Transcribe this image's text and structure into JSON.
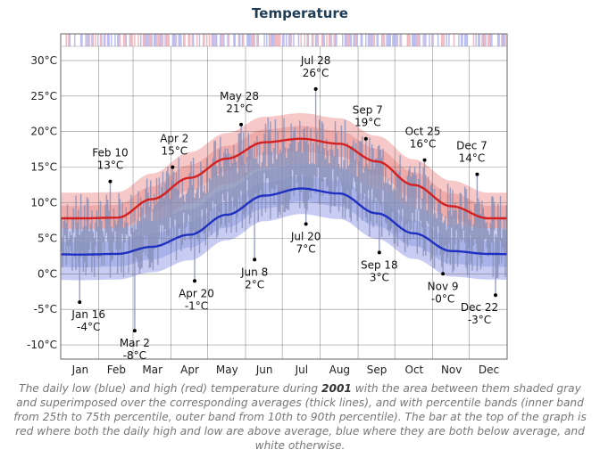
{
  "title": "Temperature",
  "caption": {
    "before": "The daily low (blue) and high (red) temperature during ",
    "year": "2001",
    "after": " with the area between them shaded gray and superimposed over the corresponding averages (thick lines), and with percentile bands (inner band from 25th to 75th percentile, outer band from 10th to 90th percentile). The bar at the top of the graph is red where both the daily high and low are above average, blue where they are both below average, and white otherwise."
  },
  "colors": {
    "high": "#d42020",
    "low": "#2030c0",
    "range_bar": "#8890b8",
    "band_high_outer": "#f6c8c8",
    "band_high_inner": "#efaaaa",
    "band_low_outer": "#c8ccf2",
    "band_low_inner": "#aab2ea",
    "status_red": "#f0b8c0",
    "status_blue": "#b8bcf0",
    "grid": "#555555"
  },
  "chart_data": {
    "type": "area",
    "title": "Temperature",
    "ylim": [
      -12,
      32
    ],
    "y_ticks": [
      30,
      25,
      20,
      15,
      10,
      5,
      0,
      -5,
      -10
    ],
    "y_tick_labels": [
      "30°C",
      "25°C",
      "20°C",
      "15°C",
      "10°C",
      "5°C",
      "0°C",
      "-5°C",
      "-10°C"
    ],
    "months": [
      "Jan",
      "Feb",
      "Mar",
      "Apr",
      "May",
      "Jun",
      "Jul",
      "Aug",
      "Sep",
      "Oct",
      "Nov",
      "Dec"
    ],
    "grid": true,
    "average_high_monthly": [
      7.8,
      7.9,
      10.5,
      13.5,
      16.2,
      18.5,
      19.0,
      18.3,
      15.8,
      12.5,
      9.5,
      7.8
    ],
    "average_low_monthly": [
      2.7,
      2.8,
      3.8,
      5.5,
      8.3,
      11.0,
      12.0,
      11.3,
      8.5,
      5.7,
      3.2,
      2.8
    ],
    "annotations": [
      {
        "date": "Jan 16",
        "value": -4,
        "label": "-4°C"
      },
      {
        "date": "Feb 10",
        "value": 13,
        "label": "13°C"
      },
      {
        "date": "Mar 2",
        "value": -8,
        "label": "-8°C"
      },
      {
        "date": "Apr 2",
        "value": 15,
        "label": "15°C"
      },
      {
        "date": "Apr 20",
        "value": -1,
        "label": "-1°C"
      },
      {
        "date": "May 28",
        "value": 21,
        "label": "21°C"
      },
      {
        "date": "Jun 8",
        "value": 2,
        "label": "2°C"
      },
      {
        "date": "Jul 20",
        "value": 7,
        "label": "7°C"
      },
      {
        "date": "Jul 28",
        "value": 26,
        "label": "26°C"
      },
      {
        "date": "Sep 7",
        "value": 19,
        "label": "19°C"
      },
      {
        "date": "Sep 18",
        "value": 3,
        "label": "3°C"
      },
      {
        "date": "Oct 25",
        "value": 16,
        "label": "16°C"
      },
      {
        "date": "Nov 9",
        "value": 0,
        "label": "-0°C"
      },
      {
        "date": "Dec 7",
        "value": 14,
        "label": "14°C"
      },
      {
        "date": "Dec 22",
        "value": -3,
        "label": "-3°C"
      }
    ]
  }
}
